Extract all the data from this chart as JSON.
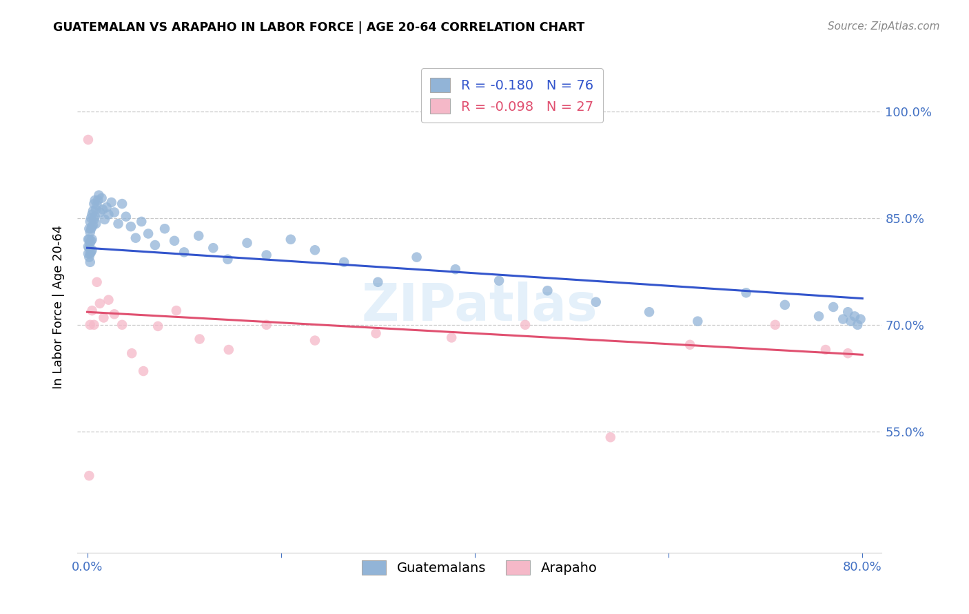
{
  "title": "GUATEMALAN VS ARAPAHO IN LABOR FORCE | AGE 20-64 CORRELATION CHART",
  "source_text": "Source: ZipAtlas.com",
  "ylabel": "In Labor Force | Age 20-64",
  "xlim": [
    -0.01,
    0.82
  ],
  "ylim": [
    0.38,
    1.07
  ],
  "xticks": [
    0.0,
    0.2,
    0.4,
    0.6,
    0.8
  ],
  "xticklabels": [
    "0.0%",
    "",
    "",
    "",
    "80.0%"
  ],
  "yticks": [
    0.55,
    0.7,
    0.85,
    1.0
  ],
  "yticklabels": [
    "55.0%",
    "70.0%",
    "85.0%",
    "100.0%"
  ],
  "ytick_color": "#4472c4",
  "xtick_color": "#4472c4",
  "background_color": "#ffffff",
  "grid_color": "#c8c8c8",
  "blue_color": "#92b4d7",
  "pink_color": "#f5b8c8",
  "blue_line_color": "#3355cc",
  "pink_line_color": "#e05070",
  "legend_R1": "-0.180",
  "legend_N1": "76",
  "legend_R2": "-0.098",
  "legend_N2": "27",
  "watermark": "ZIPatlas",
  "blue_scatter_x": [
    0.001,
    0.001,
    0.001,
    0.002,
    0.002,
    0.002,
    0.002,
    0.003,
    0.003,
    0.003,
    0.003,
    0.003,
    0.004,
    0.004,
    0.004,
    0.004,
    0.005,
    0.005,
    0.005,
    0.005,
    0.006,
    0.006,
    0.007,
    0.007,
    0.008,
    0.008,
    0.009,
    0.009,
    0.01,
    0.011,
    0.012,
    0.013,
    0.015,
    0.016,
    0.018,
    0.02,
    0.022,
    0.025,
    0.028,
    0.032,
    0.036,
    0.04,
    0.045,
    0.05,
    0.056,
    0.063,
    0.07,
    0.08,
    0.09,
    0.1,
    0.115,
    0.13,
    0.145,
    0.165,
    0.185,
    0.21,
    0.235,
    0.265,
    0.3,
    0.34,
    0.38,
    0.425,
    0.475,
    0.525,
    0.58,
    0.63,
    0.68,
    0.72,
    0.755,
    0.77,
    0.78,
    0.785,
    0.788,
    0.792,
    0.795,
    0.798
  ],
  "blue_scatter_y": [
    0.82,
    0.81,
    0.8,
    0.835,
    0.82,
    0.808,
    0.795,
    0.845,
    0.83,
    0.815,
    0.8,
    0.788,
    0.85,
    0.835,
    0.818,
    0.802,
    0.855,
    0.838,
    0.82,
    0.805,
    0.86,
    0.84,
    0.87,
    0.848,
    0.875,
    0.852,
    0.862,
    0.842,
    0.868,
    0.875,
    0.882,
    0.858,
    0.878,
    0.862,
    0.848,
    0.865,
    0.855,
    0.872,
    0.858,
    0.842,
    0.87,
    0.852,
    0.838,
    0.822,
    0.845,
    0.828,
    0.812,
    0.835,
    0.818,
    0.802,
    0.825,
    0.808,
    0.792,
    0.815,
    0.798,
    0.82,
    0.805,
    0.788,
    0.76,
    0.795,
    0.778,
    0.762,
    0.748,
    0.732,
    0.718,
    0.705,
    0.745,
    0.728,
    0.712,
    0.725,
    0.708,
    0.718,
    0.705,
    0.712,
    0.7,
    0.708
  ],
  "pink_scatter_x": [
    0.001,
    0.002,
    0.003,
    0.005,
    0.007,
    0.01,
    0.013,
    0.017,
    0.022,
    0.028,
    0.036,
    0.046,
    0.058,
    0.073,
    0.092,
    0.116,
    0.146,
    0.185,
    0.235,
    0.298,
    0.376,
    0.452,
    0.54,
    0.622,
    0.71,
    0.762,
    0.785
  ],
  "pink_scatter_y": [
    0.96,
    0.488,
    0.7,
    0.72,
    0.7,
    0.76,
    0.73,
    0.71,
    0.735,
    0.715,
    0.7,
    0.66,
    0.635,
    0.698,
    0.72,
    0.68,
    0.665,
    0.7,
    0.678,
    0.688,
    0.682,
    0.7,
    0.542,
    0.672,
    0.7,
    0.665,
    0.66
  ],
  "blue_trend_x": [
    0.0,
    0.8
  ],
  "blue_trend_y": [
    0.808,
    0.737
  ],
  "pink_trend_x": [
    0.0,
    0.8
  ],
  "pink_trend_y": [
    0.718,
    0.658
  ]
}
